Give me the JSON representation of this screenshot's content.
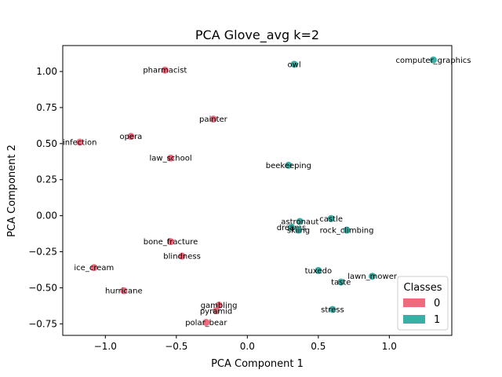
{
  "chart_data": {
    "type": "scatter",
    "title": "PCA Glove_avg k=2",
    "xlabel": "PCA Component 1",
    "ylabel": "PCA Component 2",
    "xlim": [
      -1.3,
      1.44
    ],
    "ylim": [
      -0.83,
      1.18
    ],
    "xticks": [
      -1.0,
      -0.5,
      0.0,
      0.5,
      1.0
    ],
    "xtick_labels": [
      "−1.0",
      "−0.5",
      "0.0",
      "0.5",
      "1.0"
    ],
    "yticks": [
      -0.75,
      -0.5,
      -0.25,
      0.0,
      0.25,
      0.5,
      0.75,
      1.0
    ],
    "ytick_labels": [
      "−0.75",
      "−0.50",
      "−0.25",
      "0.00",
      "0.25",
      "0.50",
      "0.75",
      "1.00"
    ],
    "grid": false,
    "colors": {
      "0": "#f0697d",
      "1": "#3aafa5"
    },
    "legend": {
      "title": "Classes",
      "location": "lower-right",
      "entries": [
        "0",
        "1"
      ]
    },
    "points": [
      {
        "label": "pharmacist",
        "x": -0.58,
        "y": 1.01,
        "class": 0
      },
      {
        "label": "painter",
        "x": -0.24,
        "y": 0.67,
        "class": 0
      },
      {
        "label": "opera",
        "x": -0.82,
        "y": 0.55,
        "class": 0
      },
      {
        "label": "infection",
        "x": -1.18,
        "y": 0.51,
        "class": 0
      },
      {
        "label": "law_school",
        "x": -0.54,
        "y": 0.4,
        "class": 0
      },
      {
        "label": "bone_fracture",
        "x": -0.54,
        "y": -0.18,
        "class": 0
      },
      {
        "label": "blindness",
        "x": -0.46,
        "y": -0.28,
        "class": 0
      },
      {
        "label": "ice_cream",
        "x": -1.08,
        "y": -0.36,
        "class": 0
      },
      {
        "label": "hurricane",
        "x": -0.87,
        "y": -0.52,
        "class": 0
      },
      {
        "label": "gambling",
        "x": -0.2,
        "y": -0.62,
        "class": 0
      },
      {
        "label": "pyramid",
        "x": -0.22,
        "y": -0.66,
        "class": 0
      },
      {
        "label": "polar_bear",
        "x": -0.29,
        "y": -0.74,
        "class": 0
      },
      {
        "label": "owl",
        "x": 0.33,
        "y": 1.05,
        "class": 1
      },
      {
        "label": "computer_graphics",
        "x": 1.31,
        "y": 1.08,
        "class": 1
      },
      {
        "label": "beekeeping",
        "x": 0.29,
        "y": 0.35,
        "class": 1
      },
      {
        "label": "castle",
        "x": 0.59,
        "y": -0.02,
        "class": 1
      },
      {
        "label": "astronaut",
        "x": 0.37,
        "y": -0.04,
        "class": 1
      },
      {
        "label": "dreams",
        "x": 0.31,
        "y": -0.08,
        "class": 1
      },
      {
        "label": "skiing",
        "x": 0.36,
        "y": -0.1,
        "class": 1
      },
      {
        "label": "rock_climbing",
        "x": 0.7,
        "y": -0.1,
        "class": 1
      },
      {
        "label": "tuxedo",
        "x": 0.5,
        "y": -0.38,
        "class": 1
      },
      {
        "label": "lawn_mower",
        "x": 0.88,
        "y": -0.42,
        "class": 1
      },
      {
        "label": "taste",
        "x": 0.66,
        "y": -0.46,
        "class": 1
      },
      {
        "label": "stress",
        "x": 0.6,
        "y": -0.65,
        "class": 1
      }
    ]
  }
}
